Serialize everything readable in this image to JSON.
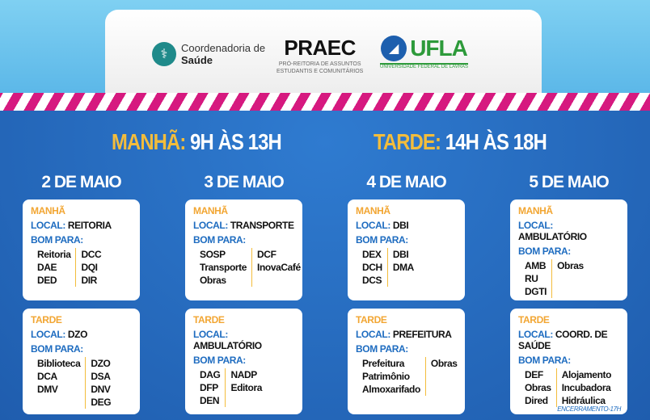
{
  "header": {
    "saude": {
      "line1": "Coordenadoria de",
      "line2": "Saúde"
    },
    "praec": {
      "name": "PRAEC",
      "sub1": "PRÓ-REITORIA DE ASSUNTOS",
      "sub2": "ESTUDANTIS E COMUNITÁRIOS"
    },
    "ufla": {
      "name": "UFLA",
      "sub": "UNIVERSIDADE FEDERAL DE LAVRAS"
    }
  },
  "hours": {
    "morning_label": "MANHÃ:",
    "morning_value": "9H ÀS 13H",
    "afternoon_label": "TARDE:",
    "afternoon_value": "14H ÀS 18H"
  },
  "labels": {
    "local": "LOCAL:",
    "bom_para": "BOM PARA:"
  },
  "days": [
    {
      "date": "2 DE MAIO",
      "cards": [
        {
          "period": "MANHÃ",
          "local": "REITORIA",
          "col1": [
            "Reitoria",
            "DAE",
            "DED"
          ],
          "col2": [
            "DCC",
            "DQI",
            "DIR"
          ]
        },
        {
          "period": "TARDE",
          "local": "DZO",
          "col1": [
            "Biblioteca",
            "DCA",
            "DMV"
          ],
          "col2": [
            "DZO",
            "DSA",
            "DNV",
            "DEG"
          ]
        }
      ]
    },
    {
      "date": "3 DE MAIO",
      "cards": [
        {
          "period": "MANHÃ",
          "local": "TRANSPORTE",
          "col1": [
            "SOSP",
            "Transporte",
            "Obras"
          ],
          "col2": [
            "DCF",
            "InovaCafé"
          ]
        },
        {
          "period": "TARDE",
          "local": "AMBULATÓRIO",
          "col1": [
            "DAG",
            "DFP",
            "DEN"
          ],
          "col2": [
            "NADP",
            "Editora"
          ]
        }
      ]
    },
    {
      "date": "4 DE MAIO",
      "cards": [
        {
          "period": "MANHÃ",
          "local": "DBI",
          "col1": [
            "DEX",
            "DCH",
            "DCS"
          ],
          "col2": [
            "DBI",
            "DMA"
          ]
        },
        {
          "period": "TARDE",
          "local": "PREFEITURA",
          "col1": [
            "Prefeitura",
            "Patrimônio",
            "Almoxarifado"
          ],
          "col2": [
            "Obras"
          ]
        }
      ]
    },
    {
      "date": "5 DE MAIO",
      "cards": [
        {
          "period": "MANHÃ",
          "local": "AMBULATÓRIO",
          "col1": [
            "AMB",
            "RU",
            "DGTI"
          ],
          "col2": [
            "Obras"
          ]
        },
        {
          "period": "TARDE",
          "local": "COORD. DE SAÚDE",
          "col1": [
            "DEF",
            "Obras",
            "Dired"
          ],
          "col2": [
            "Alojamento",
            "Incubadora",
            "Hidráulica"
          ],
          "note": "ENCERRAMENTO-17H"
        }
      ]
    }
  ],
  "colors": {
    "blue": "#2468b9",
    "yellow": "#f3bd3c",
    "orange": "#f2a633",
    "pink": "#d6197f"
  }
}
